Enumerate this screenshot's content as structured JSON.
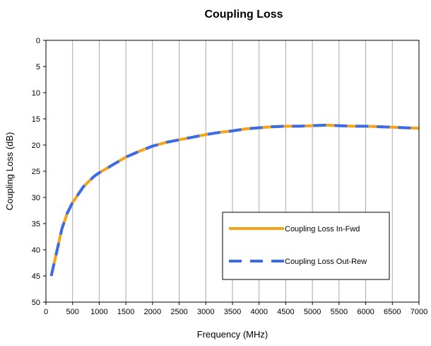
{
  "chart_data": {
    "type": "line",
    "title": "Coupling Loss",
    "xlabel": "Frequency (MHz)",
    "ylabel": "Coupling Loss (dB)",
    "xlim": [
      0,
      7000
    ],
    "ylim": [
      0,
      50
    ],
    "y_inverted": true,
    "xticks": [
      0,
      500,
      1000,
      1500,
      2000,
      2500,
      3000,
      3500,
      4000,
      4500,
      5000,
      5500,
      6000,
      6500,
      7000
    ],
    "yticks": [
      0,
      5,
      10,
      15,
      20,
      25,
      30,
      35,
      40,
      45,
      50
    ],
    "grid": "vertical",
    "legend_position": "bottom-right",
    "series": [
      {
        "name": "Coupling Loss In-Fwd",
        "color": "#F7A21B",
        "style": "solid",
        "x": [
          100,
          200,
          300,
          400,
          500,
          600,
          700,
          800,
          900,
          1000,
          1250,
          1500,
          1750,
          2000,
          2250,
          2500,
          2750,
          3000,
          3250,
          3500,
          3750,
          4000,
          4250,
          4500,
          4750,
          5000,
          5250,
          5500,
          5750,
          6000,
          6250,
          6500,
          6750,
          7000
        ],
        "values": [
          45.0,
          40.5,
          36.0,
          33.0,
          31.0,
          29.5,
          28.0,
          27.0,
          26.0,
          25.3,
          23.8,
          22.3,
          21.2,
          20.2,
          19.5,
          19.0,
          18.5,
          18.0,
          17.6,
          17.3,
          16.9,
          16.7,
          16.5,
          16.4,
          16.4,
          16.3,
          16.2,
          16.3,
          16.4,
          16.4,
          16.5,
          16.6,
          16.7,
          16.8
        ]
      },
      {
        "name": "Coupling Loss Out-Rew",
        "color": "#3A6BE8",
        "style": "dashed",
        "x": [
          100,
          200,
          300,
          400,
          500,
          600,
          700,
          800,
          900,
          1000,
          1250,
          1500,
          1750,
          2000,
          2250,
          2500,
          2750,
          3000,
          3250,
          3500,
          3750,
          4000,
          4250,
          4500,
          4750,
          5000,
          5250,
          5500,
          5750,
          6000,
          6250,
          6500,
          6750,
          7000
        ],
        "values": [
          45.0,
          40.5,
          36.0,
          33.0,
          31.0,
          29.5,
          28.0,
          27.0,
          26.0,
          25.3,
          23.8,
          22.3,
          21.2,
          20.2,
          19.5,
          19.0,
          18.5,
          18.0,
          17.6,
          17.3,
          16.9,
          16.7,
          16.5,
          16.4,
          16.4,
          16.3,
          16.2,
          16.3,
          16.4,
          16.4,
          16.5,
          16.6,
          16.7,
          16.8
        ]
      }
    ]
  }
}
